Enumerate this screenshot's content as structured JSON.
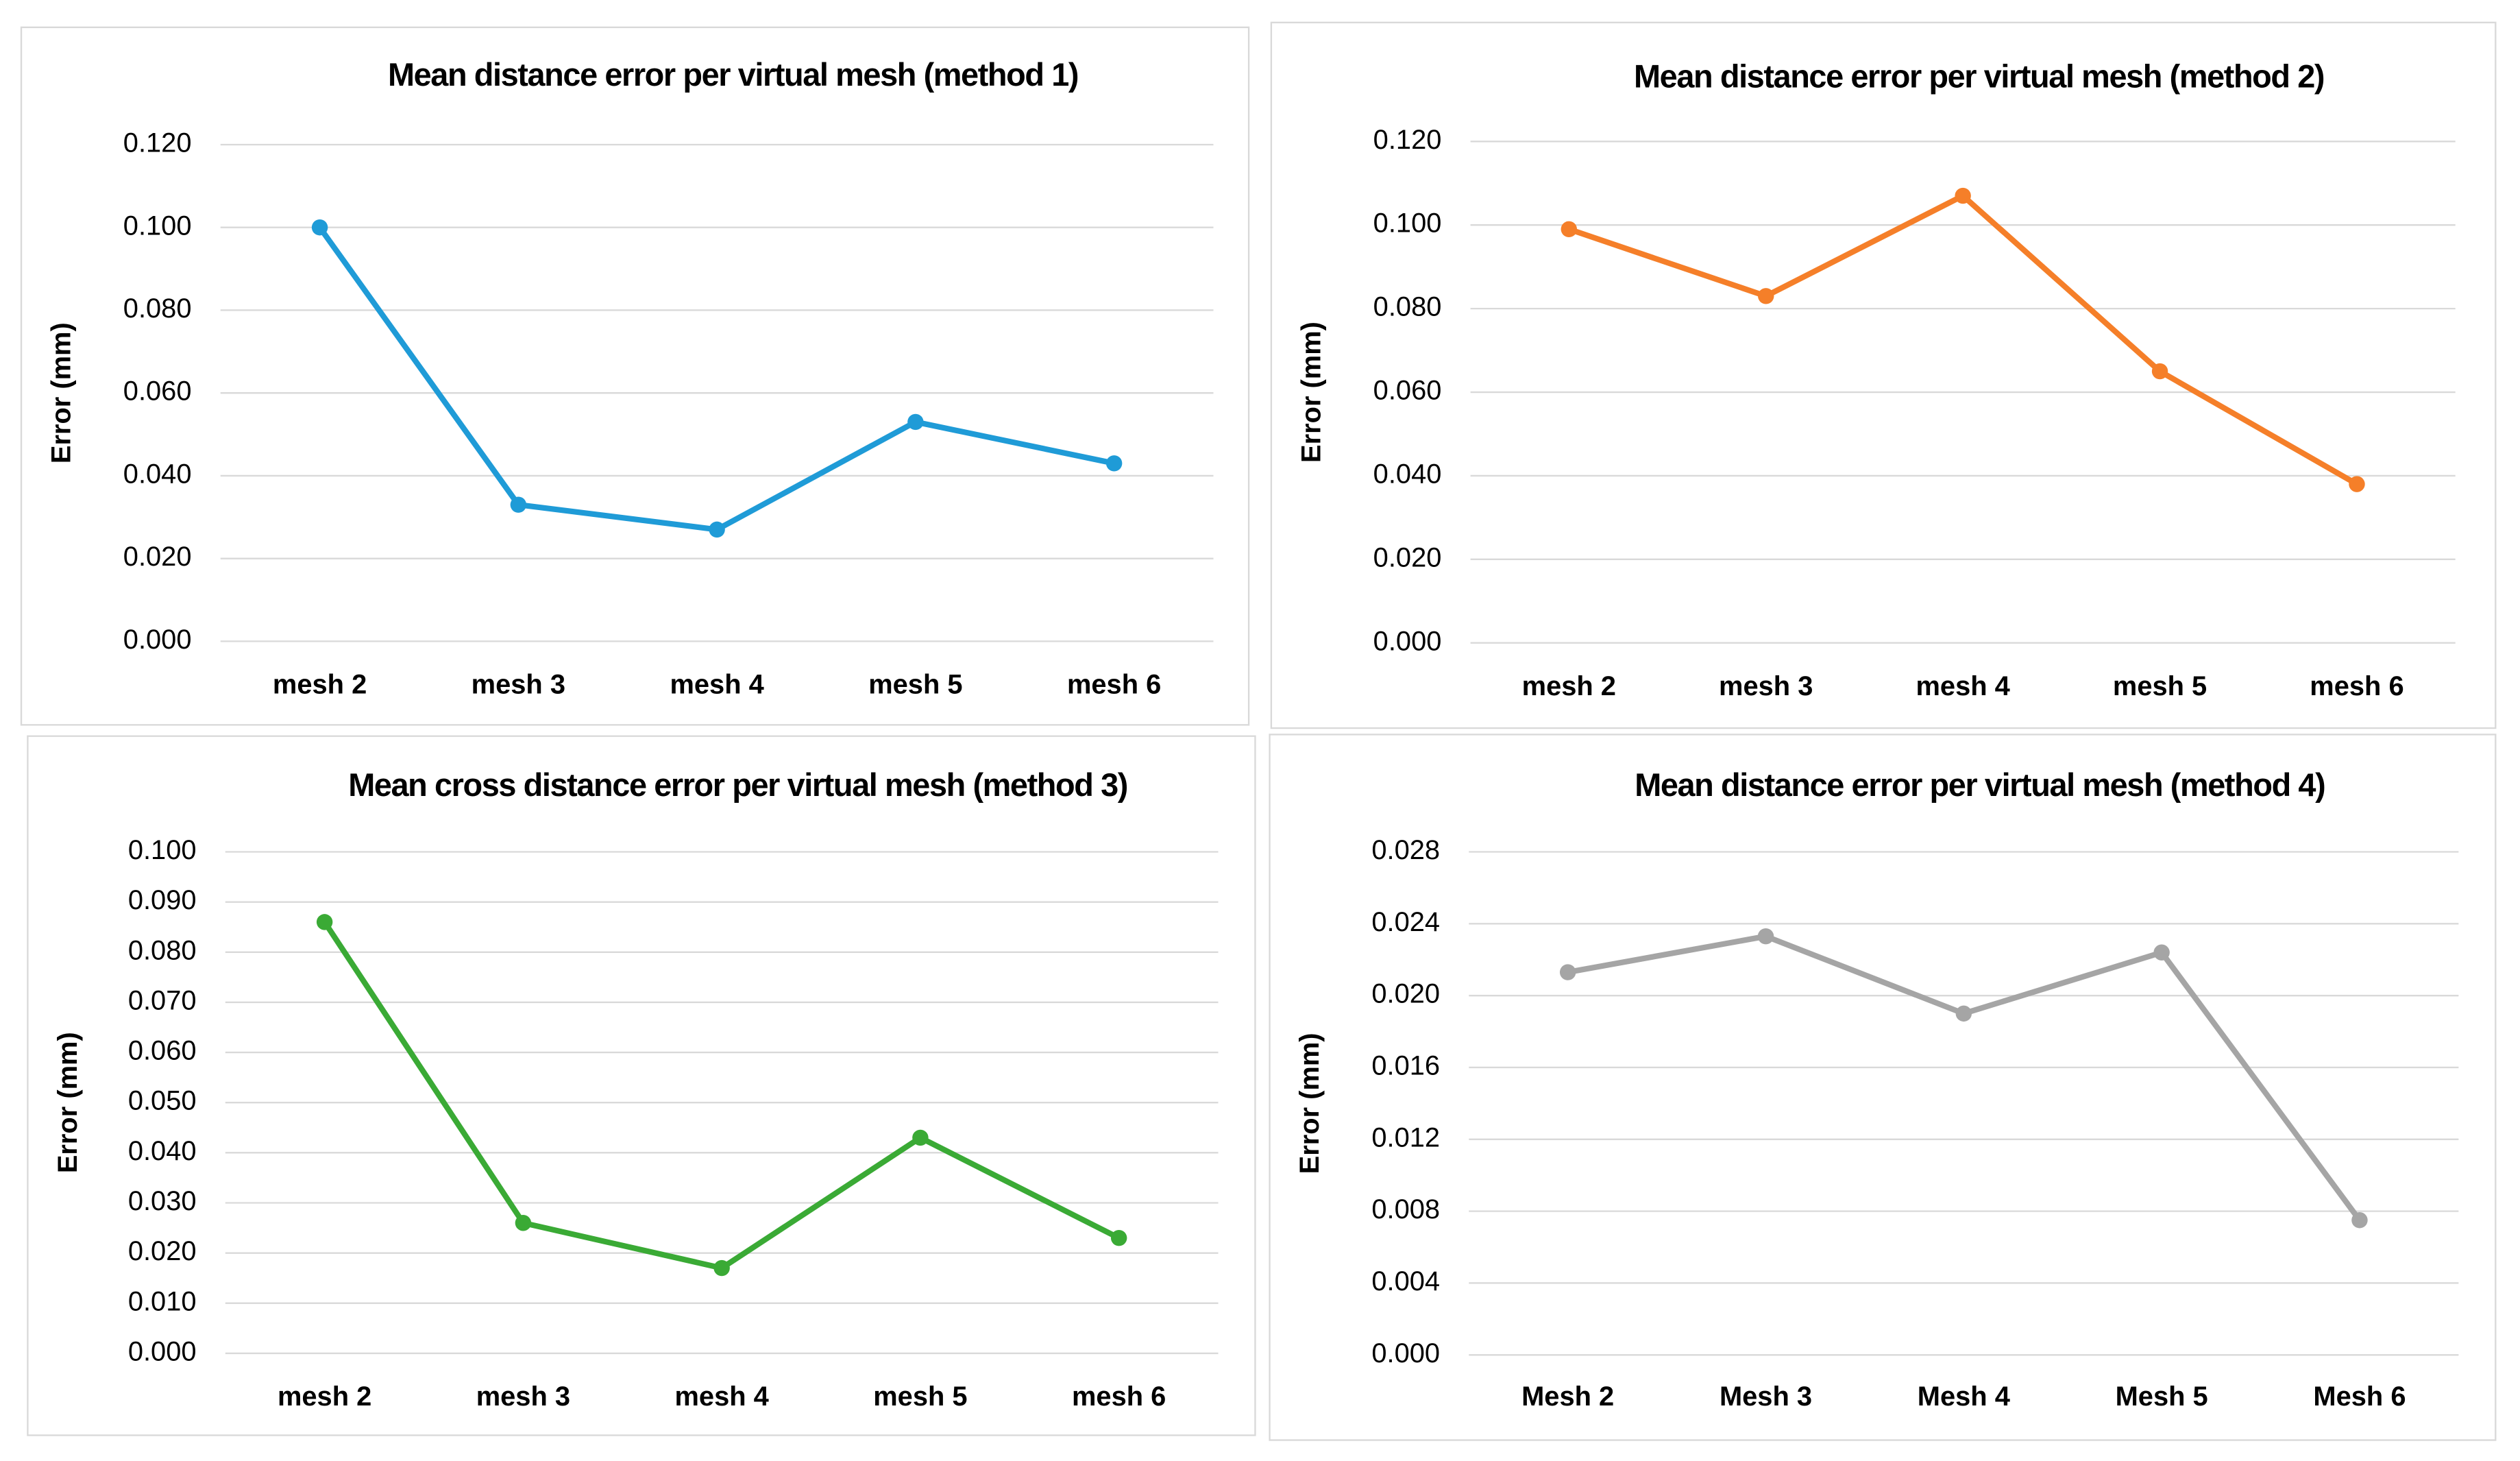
{
  "chart_data": [
    {
      "type": "line",
      "title": "Mean distance error per virtual mesh (method 1)",
      "y_label": "Error (mm)",
      "categories": [
        "mesh 2",
        "mesh 3",
        "mesh 4",
        "mesh 5",
        "mesh 6"
      ],
      "series": [
        {
          "name": "method 1",
          "color": "#1f9bd7",
          "values": [
            0.1,
            0.033,
            0.027,
            0.053,
            0.043
          ]
        }
      ],
      "ylim": [
        0,
        0.12
      ],
      "yticks": [
        {
          "value": 0,
          "label": "0.000"
        },
        {
          "value": 0.02,
          "label": "0.020"
        },
        {
          "value": 0.04,
          "label": "0.040"
        },
        {
          "value": 0.06,
          "label": "0.060"
        },
        {
          "value": 0.08,
          "label": "0.080"
        },
        {
          "value": 0.1,
          "label": "0.100"
        },
        {
          "value": 0.12,
          "label": "0.120"
        }
      ],
      "grid": true
    },
    {
      "type": "line",
      "title": "Mean distance error per virtual mesh (method 2)",
      "y_label": "Error (mm)",
      "categories": [
        "mesh 2",
        "mesh 3",
        "mesh 4",
        "mesh 5",
        "mesh 6"
      ],
      "series": [
        {
          "name": "method 2",
          "color": "#f57f29",
          "values": [
            0.099,
            0.083,
            0.107,
            0.065,
            0.038
          ]
        }
      ],
      "ylim": [
        0,
        0.12
      ],
      "yticks": [
        {
          "value": 0,
          "label": "0.000"
        },
        {
          "value": 0.02,
          "label": "0.020"
        },
        {
          "value": 0.04,
          "label": "0.040"
        },
        {
          "value": 0.06,
          "label": "0.060"
        },
        {
          "value": 0.08,
          "label": "0.080"
        },
        {
          "value": 0.1,
          "label": "0.100"
        },
        {
          "value": 0.12,
          "label": "0.120"
        }
      ],
      "grid": true
    },
    {
      "type": "line",
      "title": "Mean cross distance error per virtual mesh (method 3)",
      "y_label": "Error (mm)",
      "categories": [
        "mesh 2",
        "mesh 3",
        "mesh 4",
        "mesh 5",
        "mesh 6"
      ],
      "series": [
        {
          "name": "method 3",
          "color": "#3aaa35",
          "values": [
            0.086,
            0.026,
            0.017,
            0.043,
            0.023
          ]
        }
      ],
      "ylim": [
        0,
        0.1
      ],
      "yticks": [
        {
          "value": 0,
          "label": "0.000"
        },
        {
          "value": 0.01,
          "label": "0.010"
        },
        {
          "value": 0.02,
          "label": "0.020"
        },
        {
          "value": 0.03,
          "label": "0.030"
        },
        {
          "value": 0.04,
          "label": "0.040"
        },
        {
          "value": 0.05,
          "label": "0.050"
        },
        {
          "value": 0.06,
          "label": "0.060"
        },
        {
          "value": 0.07,
          "label": "0.070"
        },
        {
          "value": 0.08,
          "label": "0.080"
        },
        {
          "value": 0.09,
          "label": "0.090"
        },
        {
          "value": 0.1,
          "label": "0.100"
        }
      ],
      "grid": true
    },
    {
      "type": "line",
      "title": "Mean distance error per virtual mesh (method 4)",
      "y_label": "Error (mm)",
      "categories": [
        "Mesh 2",
        "Mesh 3",
        "Mesh 4",
        "Mesh 5",
        "Mesh 6"
      ],
      "series": [
        {
          "name": "method 4",
          "color": "#a5a5a5",
          "values": [
            0.0213,
            0.0233,
            0.019,
            0.0224,
            0.0075
          ]
        }
      ],
      "ylim": [
        0,
        0.028
      ],
      "yticks": [
        {
          "value": 0,
          "label": "0.000"
        },
        {
          "value": 0.004,
          "label": "0.004"
        },
        {
          "value": 0.008,
          "label": "0.008"
        },
        {
          "value": 0.012,
          "label": "0.012"
        },
        {
          "value": 0.016,
          "label": "0.016"
        },
        {
          "value": 0.02,
          "label": "0.020"
        },
        {
          "value": 0.024,
          "label": "0.024"
        },
        {
          "value": 0.028,
          "label": "0.028"
        }
      ],
      "grid": true
    }
  ]
}
